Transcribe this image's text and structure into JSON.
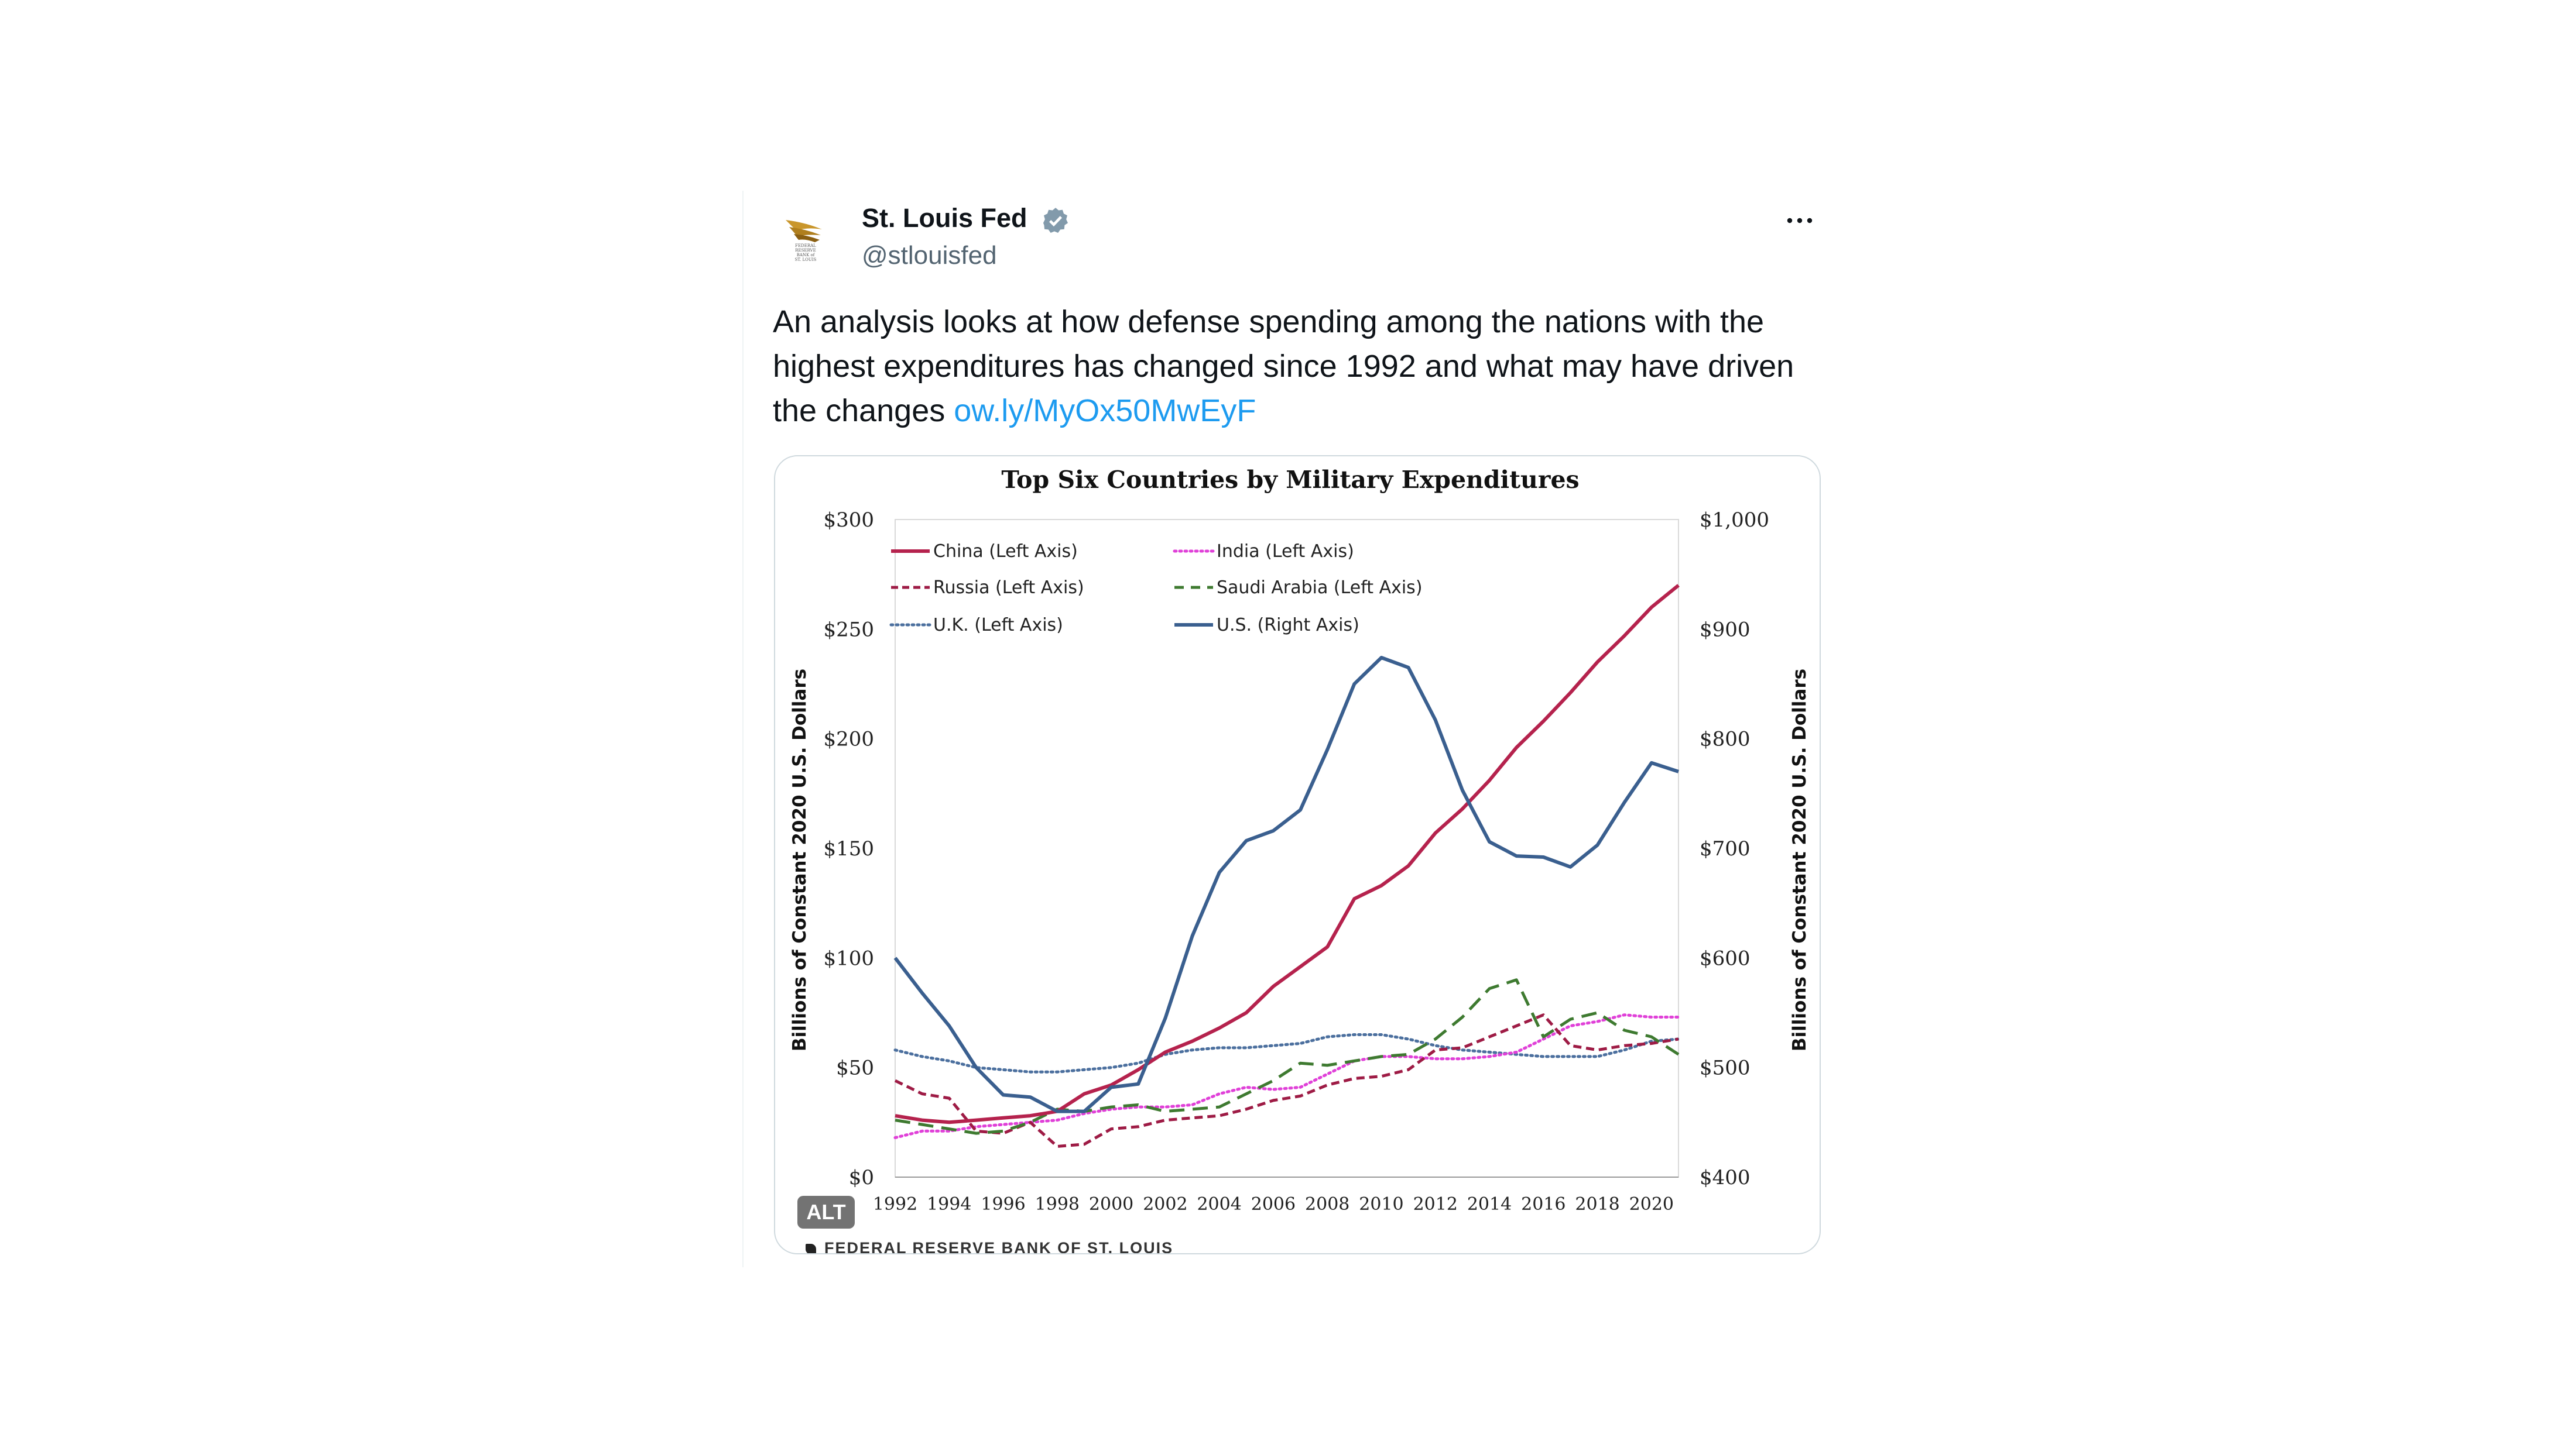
{
  "tweet": {
    "name": "St. Louis Fed",
    "handle": "@stlouisfed",
    "text": "An analysis looks at how defense spending among the nations with the highest expenditures has changed since 1992 and what may have driven the changes ",
    "link": "ow.ly/MyOx50MwEyF",
    "alt_badge": "ALT",
    "avatar_lines": [
      "FEDERAL",
      "RESERVE",
      "BANK of",
      "ST. LOUIS"
    ]
  },
  "colors": {
    "China": "#b5224d",
    "India": "#e040d8",
    "Russia": "#9e1b45",
    "Saudi Arabia": "#3e7a30",
    "U.K.": "#4b6f9e",
    "U.S.": "#3a5f8f"
  },
  "chart_data": {
    "type": "line",
    "title": "Top Six Countries by Military Expenditures",
    "ylabel_left": "Billions of Constant  2020 U.S. Dollars",
    "ylabel_right": "Billions of Constant  2020 U.S. Dollars",
    "source": "FEDERAL RESERVE BANK OF ST. LOUIS",
    "ylim_left": [
      0,
      300
    ],
    "ylim_right": [
      400,
      1000
    ],
    "y_ticks_left": [
      "$0",
      "$50",
      "$100",
      "$150",
      "$200",
      "$250",
      "$300"
    ],
    "y_ticks_right": [
      "$400",
      "$500",
      "$600",
      "$700",
      "$800",
      "$900",
      "$1,000"
    ],
    "x_ticks": [
      "1992",
      "1994",
      "1996",
      "1998",
      "2000",
      "2002",
      "2004",
      "2006",
      "2008",
      "2010",
      "2012",
      "2014",
      "2016",
      "2018",
      "2020"
    ],
    "x": [
      1992,
      1993,
      1994,
      1995,
      1996,
      1997,
      1998,
      1999,
      2000,
      2001,
      2002,
      2003,
      2004,
      2005,
      2006,
      2007,
      2008,
      2009,
      2010,
      2011,
      2012,
      2013,
      2014,
      2015,
      2016,
      2017,
      2018,
      2019,
      2020,
      2021
    ],
    "legend_position": "top-left",
    "grid": false,
    "series": [
      {
        "name": "China (Left Axis)",
        "axis": "left",
        "style": "solid",
        "values": [
          28,
          26,
          25,
          26,
          27,
          28,
          30,
          38,
          42,
          49,
          57,
          62,
          68,
          75,
          87,
          96,
          105,
          127,
          133,
          142,
          157,
          168,
          181,
          196,
          208,
          221,
          235,
          247,
          260,
          270
        ]
      },
      {
        "name": "India (Left Axis)",
        "axis": "left",
        "style": "dotted",
        "values": [
          18,
          21,
          21,
          23,
          24,
          25,
          26,
          29,
          31,
          32,
          32,
          33,
          38,
          41,
          40,
          41,
          47,
          53,
          55,
          55,
          54,
          54,
          55,
          57,
          63,
          69,
          71,
          74,
          73,
          73
        ]
      },
      {
        "name": "Russia (Left Axis)",
        "axis": "left",
        "style": "dashed",
        "values": [
          44,
          38,
          36,
          21,
          20,
          25,
          14,
          15,
          22,
          23,
          26,
          27,
          28,
          31,
          35,
          37,
          42,
          45,
          46,
          49,
          58,
          59,
          64,
          69,
          74,
          60,
          58,
          60,
          61,
          63
        ]
      },
      {
        "name": "Saudi Arabia (Left Axis)",
        "axis": "left",
        "style": "longdash",
        "values": [
          26,
          24,
          22,
          20,
          21,
          25,
          31,
          30,
          32,
          33,
          30,
          31,
          32,
          38,
          44,
          52,
          51,
          53,
          55,
          56,
          63,
          73,
          86,
          90,
          64,
          72,
          75,
          67,
          64,
          56
        ]
      },
      {
        "name": "U.K. (Left Axis)",
        "axis": "left",
        "style": "dotted",
        "values": [
          58,
          55,
          53,
          50,
          49,
          48,
          48,
          49,
          50,
          52,
          56,
          58,
          59,
          59,
          60,
          61,
          64,
          65,
          65,
          63,
          60,
          58,
          57,
          56,
          55,
          55,
          55,
          58,
          62,
          63
        ]
      },
      {
        "name": "U.S. (Right Axis)",
        "axis": "right",
        "style": "solid",
        "values": [
          600,
          568,
          538,
          500,
          475,
          473,
          460,
          460,
          482,
          485,
          545,
          620,
          678,
          707,
          716,
          735,
          790,
          850,
          874,
          865,
          817,
          753,
          706,
          693,
          692,
          683,
          703,
          742,
          778,
          770
        ]
      }
    ]
  }
}
